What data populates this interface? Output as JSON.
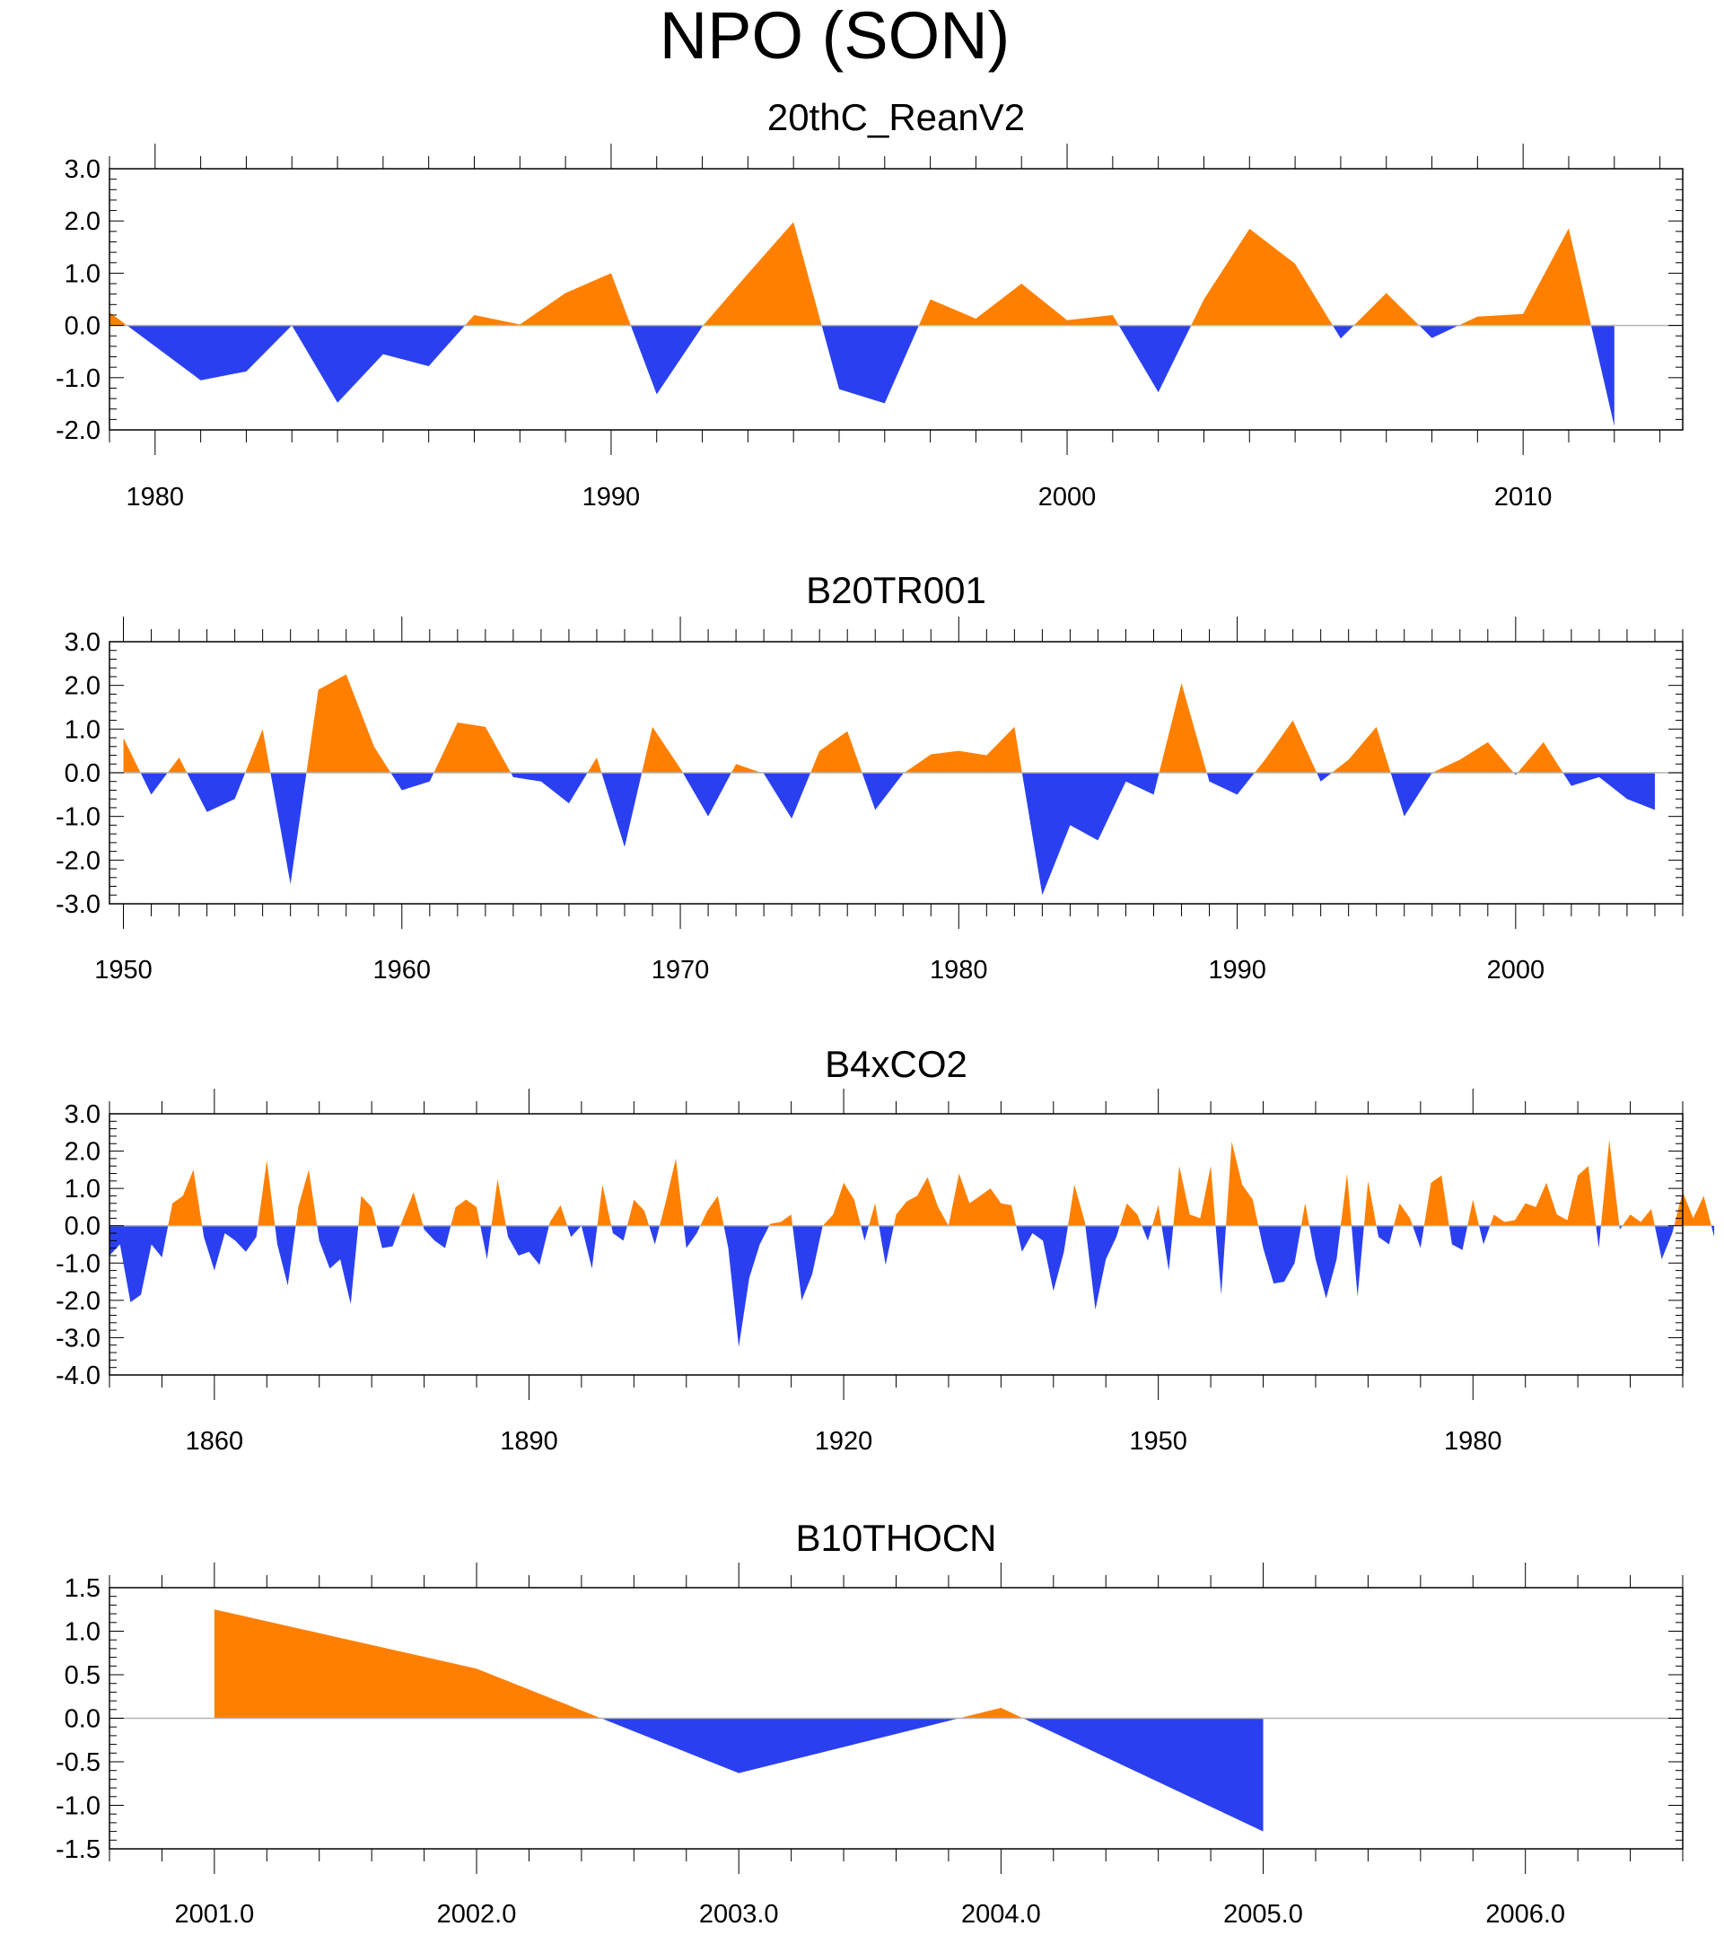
{
  "figure": {
    "title": "NPO (SON)"
  },
  "colors": {
    "positive": "#ff8000",
    "negative": "#2a40f0",
    "frame": "#000000",
    "zero_line": "#b4b4b4"
  },
  "chart_data": [
    {
      "type": "area",
      "title": "20thC_ReanV2",
      "x": [
        1979,
        1980,
        1981,
        1982,
        1983,
        1984,
        1985,
        1986,
        1987,
        1988,
        1989,
        1990,
        1991,
        1992,
        1993,
        1994,
        1995,
        1996,
        1997,
        1998,
        1999,
        2000,
        2001,
        2002,
        2003,
        2004,
        2005,
        2006,
        2007,
        2008,
        2009,
        2010,
        2011,
        2012
      ],
      "values": [
        0.25,
        -0.4,
        -1.05,
        -0.88,
        0.0,
        -1.48,
        -0.55,
        -0.78,
        0.2,
        0.02,
        0.62,
        1.0,
        -1.32,
        -0.02,
        0.99,
        1.98,
        -1.22,
        -1.49,
        0.5,
        0.13,
        0.8,
        0.1,
        0.2,
        -1.28,
        0.5,
        1.85,
        1.18,
        -0.25,
        0.62,
        -0.24,
        0.17,
        0.22,
        1.86,
        -1.93
      ],
      "xlim": [
        1979,
        2013.5
      ],
      "ylim": [
        -2,
        3
      ],
      "xticks": [
        1980,
        1990,
        2000,
        2010
      ],
      "xtick_labels": [
        "1980",
        "1990",
        "2000",
        "2010"
      ],
      "yticks": [
        -2,
        -1,
        0,
        1,
        2,
        3
      ],
      "ytick_labels": [
        "-2.0",
        "-1.0",
        "0.0",
        "1.0",
        "2.0",
        "3.0"
      ],
      "xlabel": "",
      "ylabel": ""
    },
    {
      "type": "area",
      "title": "B20TR001",
      "x": [
        1950,
        1951,
        1952,
        1953,
        1954,
        1955,
        1956,
        1957,
        1958,
        1959,
        1960,
        1961,
        1962,
        1963,
        1964,
        1965,
        1966,
        1967,
        1968,
        1969,
        1970,
        1971,
        1972,
        1973,
        1974,
        1975,
        1976,
        1977,
        1978,
        1979,
        1980,
        1981,
        1982,
        1983,
        1984,
        1985,
        1986,
        1987,
        1988,
        1989,
        1990,
        1991,
        1992,
        1993,
        1994,
        1995,
        1996,
        1997,
        1998,
        1999,
        2000,
        2001,
        2002,
        2003,
        2004,
        2005
      ],
      "values": [
        0.8,
        -0.5,
        0.35,
        -0.9,
        -0.6,
        1.0,
        -2.55,
        1.9,
        2.25,
        0.6,
        -0.4,
        -0.2,
        1.15,
        1.05,
        -0.1,
        -0.2,
        -0.7,
        0.35,
        -1.7,
        1.05,
        0.1,
        -1.0,
        0.2,
        -0.02,
        -1.05,
        0.5,
        0.95,
        -0.85,
        -0.02,
        0.42,
        0.5,
        0.4,
        1.05,
        -2.8,
        -1.2,
        -1.55,
        -0.2,
        -0.5,
        2.05,
        -0.2,
        -0.5,
        0.3,
        1.2,
        -0.2,
        0.3,
        1.05,
        -1.0,
        0.0,
        0.3,
        0.7,
        -0.05,
        0.7,
        -0.3,
        -0.1,
        -0.6,
        -0.85
      ],
      "xlim": [
        1949.5,
        2006
      ],
      "ylim": [
        -3,
        3
      ],
      "xticks": [
        1950,
        1960,
        1970,
        1980,
        1990,
        2000
      ],
      "xtick_labels": [
        "1950",
        "1960",
        "1970",
        "1980",
        "1990",
        "2000"
      ],
      "yticks": [
        -3,
        -2,
        -1,
        0,
        1,
        2,
        3
      ],
      "ytick_labels": [
        "-3.0",
        "-2.0",
        "-1.0",
        "0.0",
        "1.0",
        "2.0",
        "3.0"
      ],
      "xlabel": "",
      "ylabel": ""
    },
    {
      "type": "area",
      "title": "B4xCO2",
      "x_start": 1850,
      "x_step": 1,
      "values": [
        -0.8,
        -0.5,
        -2.05,
        -1.85,
        -0.5,
        -0.85,
        0.6,
        0.8,
        1.5,
        -0.3,
        -1.2,
        -0.2,
        -0.4,
        -0.7,
        -0.3,
        1.75,
        -0.5,
        -1.6,
        0.5,
        1.5,
        -0.4,
        -1.15,
        -0.9,
        -2.1,
        0.8,
        0.5,
        -0.6,
        -0.55,
        0.2,
        0.9,
        -0.1,
        -0.4,
        -0.6,
        0.5,
        0.7,
        0.5,
        -0.9,
        1.25,
        -0.3,
        -0.8,
        -0.7,
        -1.05,
        0.1,
        0.55,
        -0.3,
        0.0,
        -1.15,
        1.1,
        -0.2,
        -0.4,
        0.7,
        0.4,
        -0.5,
        0.6,
        1.8,
        -0.6,
        -0.2,
        0.4,
        0.8,
        -0.6,
        -3.25,
        -1.4,
        -0.5,
        0.05,
        0.1,
        0.3,
        -2.0,
        -1.3,
        0.0,
        0.3,
        1.15,
        0.7,
        -0.4,
        0.6,
        -1.05,
        0.3,
        0.65,
        0.8,
        1.3,
        0.5,
        0.0,
        1.4,
        0.6,
        0.8,
        1.0,
        0.6,
        0.55,
        -0.7,
        -0.2,
        -0.4,
        -1.75,
        -0.7,
        1.1,
        0.1,
        -2.25,
        -0.9,
        -0.3,
        0.6,
        0.3,
        -0.4,
        0.55,
        -1.2,
        1.6,
        0.3,
        0.2,
        1.6,
        -1.85,
        2.25,
        1.1,
        0.7,
        -0.6,
        -1.55,
        -1.5,
        -1.0,
        0.6,
        -0.9,
        -1.95,
        -0.9,
        1.4,
        -1.9,
        1.2,
        -0.3,
        -0.5,
        0.6,
        0.2,
        -0.6,
        1.15,
        1.35,
        -0.5,
        -0.65,
        0.7,
        -0.5,
        0.3,
        0.1,
        0.15,
        0.6,
        0.5,
        1.15,
        0.3,
        0.15,
        1.35,
        1.6,
        -0.6,
        2.3,
        -0.1,
        0.3,
        0.1,
        0.45,
        -0.9,
        -0.2,
        0.9,
        0.2,
        0.8,
        -0.3
      ],
      "xlim": [
        1850,
        2000
      ],
      "ylim": [
        -4,
        3
      ],
      "xticks": [
        1860,
        1890,
        1920,
        1950,
        1980
      ],
      "xtick_labels": [
        "1860",
        "1890",
        "1920",
        "1950",
        "1980"
      ],
      "yticks": [
        -4,
        -3,
        -2,
        -1,
        0,
        1,
        2,
        3
      ],
      "ytick_labels": [
        "-4.0",
        "-3.0",
        "-2.0",
        "-1.0",
        "0.0",
        "1.0",
        "2.0",
        "3.0"
      ],
      "xlabel": "",
      "ylabel": ""
    },
    {
      "type": "area",
      "title": "B10THOCN",
      "x": [
        2001.0,
        2002.0,
        2003.0,
        2004.0,
        2005.0
      ],
      "values": [
        1.25,
        0.57,
        -0.63,
        0.12,
        -1.3
      ],
      "xlim": [
        2000.6,
        2006.6
      ],
      "ylim": [
        -1.5,
        1.5
      ],
      "xticks": [
        2001.0,
        2002.0,
        2003.0,
        2004.0,
        2005.0,
        2006.0
      ],
      "xtick_labels": [
        "2001.0",
        "2002.0",
        "2003.0",
        "2004.0",
        "2005.0",
        "2006.0"
      ],
      "yticks": [
        -1.5,
        -1.0,
        -0.5,
        0.0,
        0.5,
        1.0,
        1.5
      ],
      "ytick_labels": [
        "-1.5",
        "-1.0",
        "-0.5",
        "0.0",
        "0.5",
        "1.0",
        "1.5"
      ],
      "xlabel": "",
      "ylabel": ""
    }
  ]
}
